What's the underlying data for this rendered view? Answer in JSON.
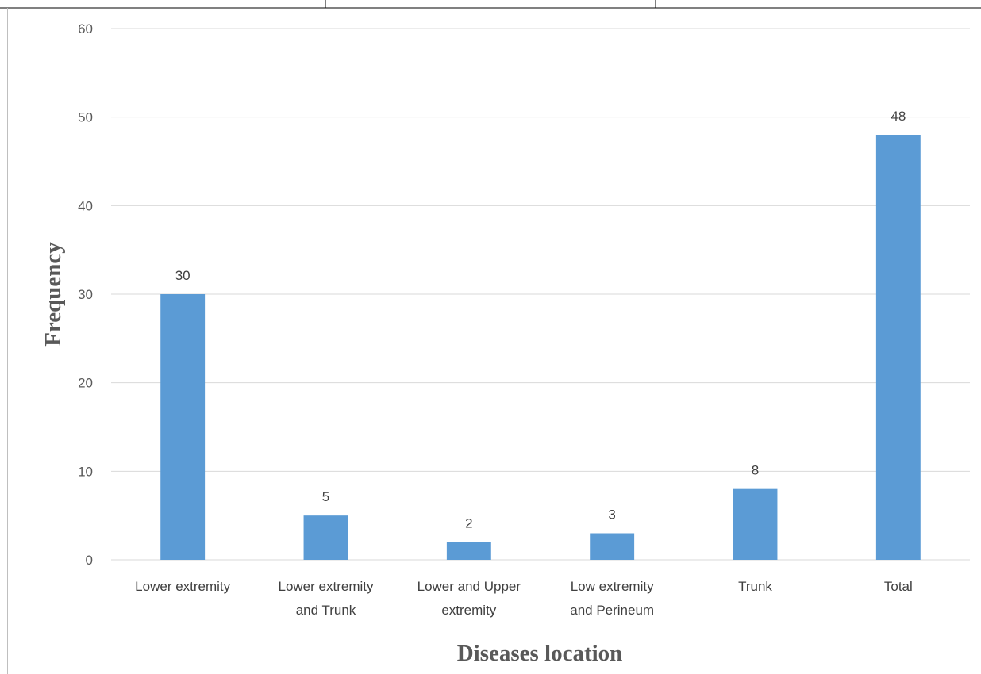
{
  "chart_data": {
    "type": "bar",
    "title": "",
    "xlabel": "Diseases location",
    "ylabel": "Frequency",
    "ylim": [
      0,
      60
    ],
    "yticks": [
      "0",
      "10",
      "20",
      "30",
      "40",
      "50",
      "60"
    ],
    "grid": true,
    "legend": "none",
    "categories": [
      [
        "Lower extremity"
      ],
      [
        "Lower extremity",
        "and Trunk"
      ],
      [
        "Lower and Upper",
        "extremity"
      ],
      [
        "Low extremity",
        "and Perineum"
      ],
      [
        "Trunk"
      ],
      [
        "Total"
      ]
    ],
    "values": [
      30,
      5,
      2,
      3,
      8,
      48
    ],
    "data_labels": [
      "30",
      "5",
      "2",
      "3",
      "8",
      "48"
    ],
    "colors": {
      "bar": "#5b9bd5",
      "grid": "#d9d9d9",
      "frame": "#000000"
    }
  }
}
